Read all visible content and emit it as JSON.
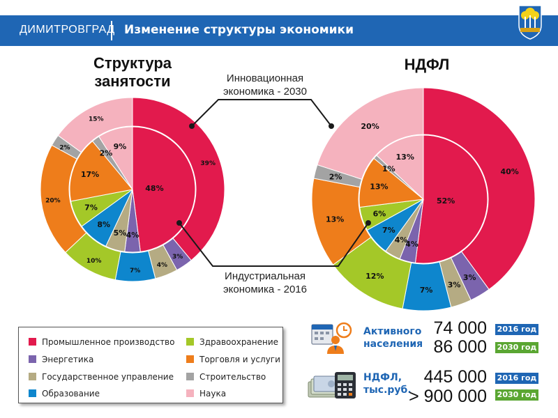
{
  "header": {
    "city": "ДИМИТРОВГРАД",
    "title": "Изменение структуры экономики"
  },
  "colors": {
    "industry": "#e21a4d",
    "energy": "#7b64ad",
    "government": "#b5ab83",
    "education": "#0e86cd",
    "health": "#a4c828",
    "trade": "#ee7d1b",
    "construction": "#a3a3a3",
    "science": "#f5b2be",
    "header": "#1f66b4"
  },
  "annotations": {
    "top": "Инновационная\nэкономика - 2030",
    "bottom": "Индустриальная\nэкономика - 2016"
  },
  "legend": [
    {
      "key": "industry",
      "label": "Промышленное производство"
    },
    {
      "key": "energy",
      "label": "Энергетика"
    },
    {
      "key": "government",
      "label": "Государственное управление"
    },
    {
      "key": "education",
      "label": "Образование"
    },
    {
      "key": "health",
      "label": "Здравоохранение"
    },
    {
      "key": "trade",
      "label": "Торговля и услуги"
    },
    {
      "key": "construction",
      "label": "Строительство"
    },
    {
      "key": "science",
      "label": "Наука"
    }
  ],
  "chart_data": [
    {
      "type": "pie",
      "title": "Структура\nзанятости",
      "categories": [
        "industry",
        "energy",
        "government",
        "education",
        "health",
        "trade",
        "construction",
        "science"
      ],
      "series": [
        {
          "name": "Индустриальная экономика - 2016",
          "values": [
            48,
            4,
            5,
            8,
            7,
            17,
            2,
            9
          ]
        },
        {
          "name": "Инновационная экономика - 2030",
          "values": [
            39,
            3,
            4,
            7,
            10,
            20,
            2,
            15
          ]
        }
      ]
    },
    {
      "type": "pie",
      "title": "НДФЛ",
      "categories": [
        "industry",
        "energy",
        "government",
        "education",
        "health",
        "trade",
        "construction",
        "science"
      ],
      "series": [
        {
          "name": "Индустриальная экономика - 2016",
          "values": [
            52,
            4,
            4,
            7,
            6,
            13,
            1,
            13
          ]
        },
        {
          "name": "Инновационная экономика - 2030",
          "values": [
            40,
            3,
            3,
            7,
            12,
            13,
            2,
            20
          ]
        }
      ]
    }
  ],
  "stats": {
    "active": {
      "label": "Активного\nнаселения",
      "v2016": "74 000",
      "v2030": "86 000"
    },
    "ndfl": {
      "label": "НДФЛ,\nтыс.руб.",
      "v2016": "445 000",
      "v2030": "> 900 000"
    },
    "badge2016": "2016 год",
    "badge2030": "2030 год"
  }
}
